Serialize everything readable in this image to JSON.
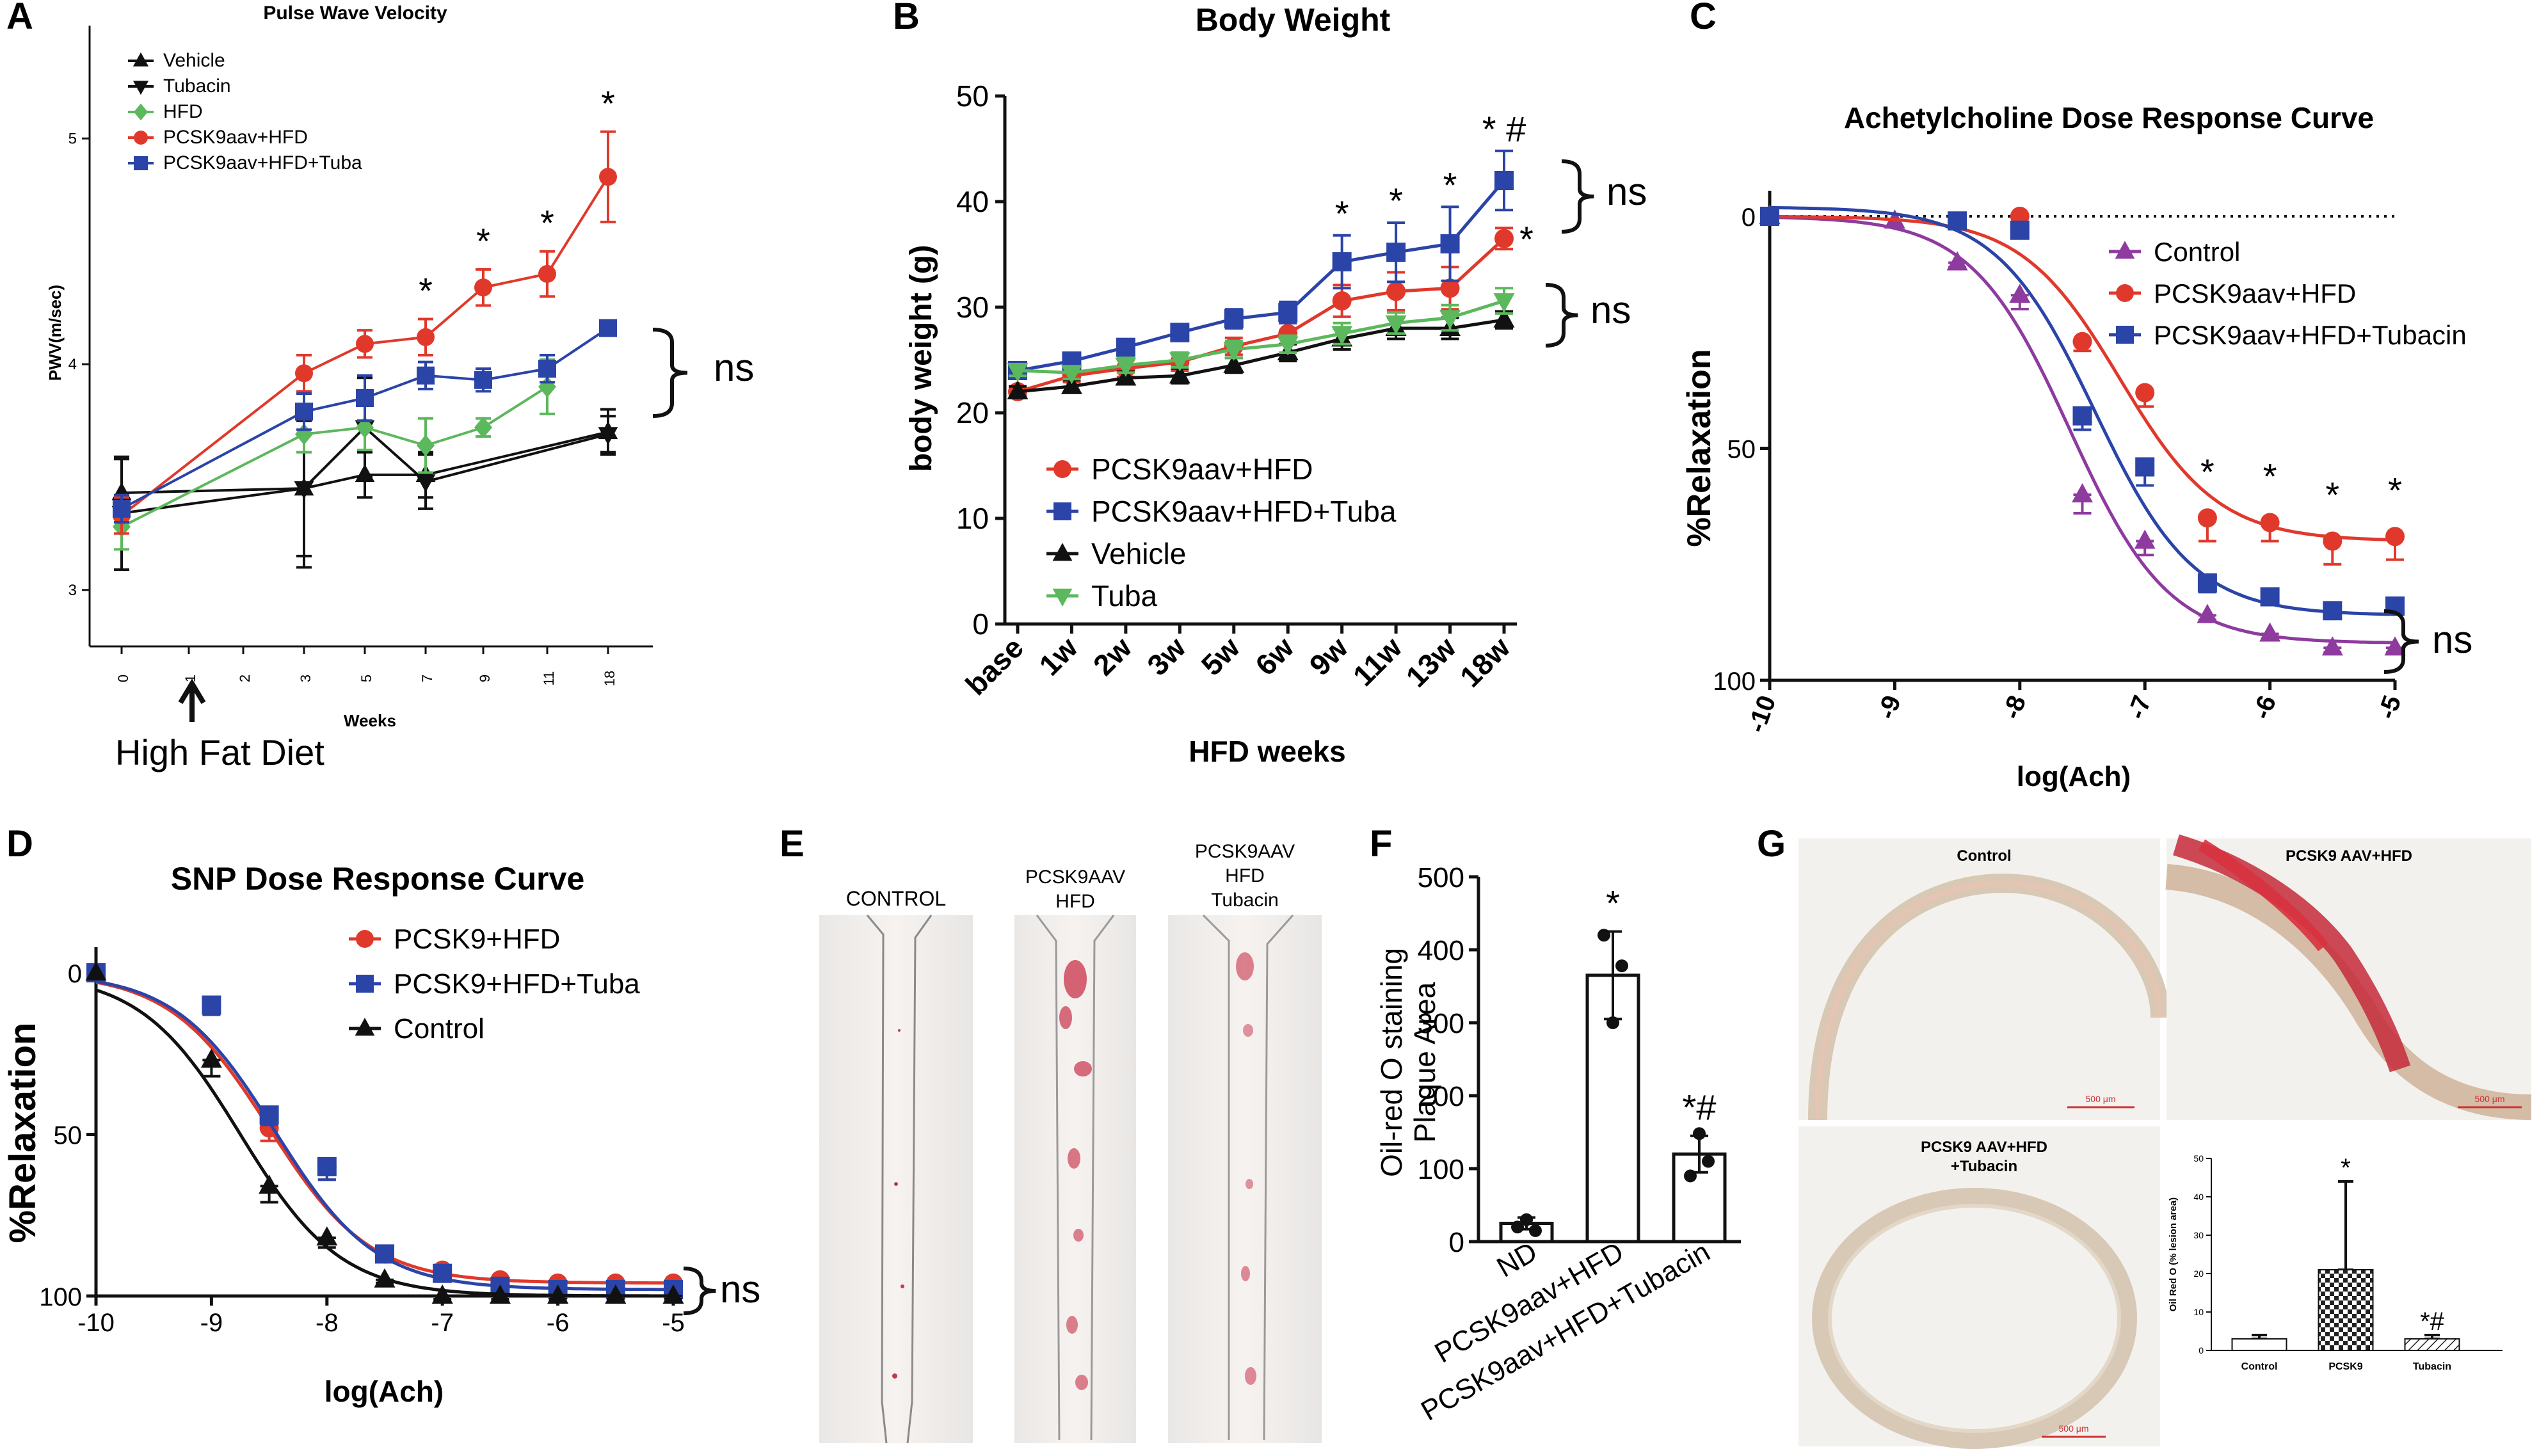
{
  "colors": {
    "red": "#e0392b",
    "blue": "#2b44a8",
    "black": "#111111",
    "green": "#5cb85c",
    "purple": "#8e3a9e"
  },
  "panels": {
    "A": {
      "letter": "A",
      "chart_data": {
        "type": "line",
        "title": "Pulse Wave Velocity",
        "ylabel": "PWV(m/sec)",
        "xlabel": "Weeks",
        "x_ticks": [
          "0",
          "1",
          "2",
          "3",
          "5",
          "7",
          "9",
          "11",
          "18"
        ],
        "ylim": [
          2.75,
          5.5
        ],
        "y_ticks": [
          "3",
          "4",
          "5"
        ],
        "series": [
          {
            "name": "Vehicle",
            "color": "#111111",
            "marker": "triangle",
            "x": [
              "0",
              "3",
              "5",
              "7",
              "18"
            ],
            "values": [
              3.43,
              3.45,
              3.51,
              3.51,
              3.7
            ],
            "err": [
              0.15,
              0.35,
              0.1,
              0.1,
              0.1
            ]
          },
          {
            "name": "Tubacin",
            "color": "#111111",
            "marker": "triangle-down",
            "x": [
              "0",
              "3",
              "5",
              "7",
              "18"
            ],
            "values": [
              3.34,
              3.45,
              3.72,
              3.48,
              3.69
            ],
            "err": [
              0.25,
              0.3,
              0.22,
              0.12,
              0.08
            ]
          },
          {
            "name": "HFD",
            "color": "#5cb85c",
            "marker": "diamond",
            "x": [
              "0",
              "3",
              "5",
              "7",
              "9",
              "11"
            ],
            "values": [
              3.28,
              3.69,
              3.72,
              3.64,
              3.72,
              3.9
            ],
            "err": [
              0.1,
              0.08,
              0.1,
              0.12,
              0.04,
              0.12
            ]
          },
          {
            "name": "PCSK9aav+HFD",
            "color": "#e0392b",
            "marker": "circle",
            "x": [
              "0",
              "3",
              "5",
              "7",
              "9",
              "11",
              "18"
            ],
            "values": [
              3.33,
              3.96,
              4.09,
              4.12,
              4.34,
              4.4,
              4.83
            ],
            "err": [
              0.08,
              0.08,
              0.06,
              0.08,
              0.08,
              0.1,
              0.2
            ]
          },
          {
            "name": "PCSK9aav+HFD+Tuba",
            "color": "#2b44a8",
            "marker": "square",
            "x": [
              "0",
              "3",
              "5",
              "7",
              "9",
              "11",
              "18"
            ],
            "values": [
              3.36,
              3.79,
              3.85,
              3.95,
              3.93,
              3.98,
              4.16
            ],
            "err": [
              0.06,
              0.08,
              0.1,
              0.06,
              0.05,
              0.06,
              0.02
            ]
          }
        ],
        "stars": [
          {
            "x": "7",
            "label": "*"
          },
          {
            "x": "9",
            "label": "*"
          },
          {
            "x": "11",
            "label": "*"
          },
          {
            "x": "18",
            "label": "*"
          }
        ],
        "bracket_label": "ns",
        "annotation": "High Fat Diet",
        "legend_position": "top-left"
      }
    },
    "B": {
      "letter": "B",
      "chart_data": {
        "type": "line",
        "title": "Body Weight",
        "ylabel": "body weight (g)",
        "xlabel": "HFD weeks",
        "categories": [
          "base",
          "1w",
          "2w",
          "3w",
          "5w",
          "6w",
          "9w",
          "11w",
          "13w",
          "18w"
        ],
        "ylim": [
          0,
          50
        ],
        "y_ticks": [
          "0",
          "10",
          "20",
          "30",
          "40",
          "50"
        ],
        "series": [
          {
            "name": "PCSK9aav+HFD",
            "color": "#e0392b",
            "marker": "circle",
            "values": [
              22.0,
              23.5,
              24.2,
              24.8,
              26.3,
              27.5,
              30.6,
              31.5,
              31.8,
              36.5
            ],
            "err": [
              0.5,
              0.6,
              0.8,
              0.8,
              0.8,
              1.0,
              1.5,
              1.8,
              2.0,
              1.0
            ]
          },
          {
            "name": "PCSK9aav+HFD+Tuba",
            "color": "#2b44a8",
            "marker": "square",
            "values": [
              24.0,
              24.9,
              26.2,
              27.6,
              28.9,
              29.5,
              34.3,
              35.2,
              36.0,
              42.0
            ],
            "err": [
              0.5,
              0.6,
              0.7,
              0.8,
              0.9,
              1.0,
              2.5,
              2.8,
              3.5,
              2.8
            ]
          },
          {
            "name": "Vehicle",
            "color": "#111111",
            "marker": "triangle",
            "values": [
              22.0,
              22.5,
              23.3,
              23.5,
              24.5,
              25.7,
              27.0,
              28.0,
              28.0,
              28.8
            ],
            "err": [
              0.5,
              0.6,
              0.6,
              0.7,
              0.7,
              0.8,
              1.0,
              1.0,
              1.0,
              0.8
            ]
          },
          {
            "name": "Tuba",
            "color": "#5cb85c",
            "marker": "triangle-down",
            "values": [
              24.0,
              23.8,
              24.5,
              25.0,
              26.0,
              26.5,
              27.5,
              28.5,
              29.0,
              30.6
            ],
            "err": [
              0.5,
              0.6,
              0.7,
              0.7,
              0.8,
              0.8,
              1.0,
              1.0,
              1.2,
              1.2
            ]
          }
        ],
        "stars": [
          {
            "x": "9w",
            "label": "*"
          },
          {
            "x": "11w",
            "label": "*"
          },
          {
            "x": "13w",
            "label": "*"
          },
          {
            "x": "18w",
            "label": "* #"
          }
        ],
        "star_red": "*",
        "bracket_label_upper": "ns",
        "bracket_label_lower": "ns",
        "legend_position": "bottom-left"
      }
    },
    "C": {
      "letter": "C",
      "chart_data": {
        "type": "scatter",
        "title": "Achetylcholine Dose Response Curve",
        "ylabel": "%Relaxation",
        "xlabel": "log(Ach)",
        "x_ticks": [
          "-10",
          "-9",
          "-8",
          "-7",
          "-6",
          "-5"
        ],
        "xlim": [
          -10,
          -5
        ],
        "ylim": [
          0,
          100
        ],
        "y_ticks": [
          "0",
          "50",
          "100"
        ],
        "series": [
          {
            "name": "Control",
            "color": "#8e3a9e",
            "marker": "triangle",
            "x": [
              -10,
              -9,
              -8.5,
              -8,
              -7.5,
              -7,
              -6.5,
              -6,
              -5.5,
              -5
            ],
            "values": [
              0,
              1,
              10,
              17,
              60,
              70,
              86,
              90,
              93,
              93
            ],
            "err": [
              0,
              0,
              1,
              3,
              4,
              3,
              1,
              1,
              1,
              1
            ],
            "curve": {
              "top": 0,
              "bottom": 92,
              "ec50": -7.6,
              "hill": 1.1
            }
          },
          {
            "name": "PCSK9aav+HFD",
            "color": "#e0392b",
            "marker": "circle",
            "x": [
              -10,
              -8,
              -7.5,
              -7,
              -6.5,
              -6,
              -5.5,
              -5
            ],
            "values": [
              0,
              0,
              27,
              38,
              65,
              66,
              70,
              69
            ],
            "err": [
              0,
              0,
              2,
              3,
              5,
              4,
              5,
              5
            ],
            "curve": {
              "top": 0,
              "bottom": 70,
              "ec50": -7.2,
              "hill": 1.1
            }
          },
          {
            "name": "PCSK9aav+HFD+Tubacin",
            "color": "#2b44a8",
            "marker": "square",
            "x": [
              -10,
              -8.5,
              -8,
              -7.5,
              -7,
              -6.5,
              -6,
              -5.5,
              -5
            ],
            "values": [
              0,
              1,
              3,
              43,
              54,
              79,
              82,
              85,
              84
            ],
            "err": [
              0,
              0,
              1,
              3,
              4,
              2,
              1,
              1,
              1
            ],
            "curve": {
              "top": -2,
              "bottom": 86,
              "ec50": -7.4,
              "hill": 1.1
            }
          }
        ],
        "stars": [
          {
            "x": -6.5,
            "label": "*"
          },
          {
            "x": -6,
            "label": "*"
          },
          {
            "x": -5.5,
            "label": "*"
          },
          {
            "x": -5,
            "label": "*"
          }
        ],
        "bracket_label": "ns",
        "legend_position": "top-right"
      }
    },
    "D": {
      "letter": "D",
      "chart_data": {
        "type": "scatter",
        "title": "SNP Dose Response Curve",
        "ylabel": "%Relaxation",
        "xlabel": "log(Ach)",
        "x_ticks": [
          "-10",
          "-9",
          "-8",
          "-7",
          "-6",
          "-5"
        ],
        "xlim": [
          -10,
          -5
        ],
        "ylim": [
          0,
          100
        ],
        "y_ticks": [
          "0",
          "50",
          "100"
        ],
        "series": [
          {
            "name": "PCSK9+HFD",
            "color": "#e0392b",
            "marker": "circle",
            "x": [
              -10,
              -9,
              -8.5,
              -8,
              -7.5,
              -7,
              -6.5,
              -6,
              -5.5,
              -5
            ],
            "values": [
              0,
              10,
              48,
              60,
              87,
              92,
              95,
              96,
              96,
              96
            ],
            "err": [
              0,
              2,
              4,
              4,
              2,
              3,
              3,
              3,
              3,
              3
            ],
            "curve": {
              "top": 0,
              "bottom": 96,
              "ec50": -8.5,
              "hill": 1.0
            }
          },
          {
            "name": "PCSK9+HFD+Tuba",
            "color": "#2b44a8",
            "marker": "square",
            "x": [
              -10,
              -9,
              -8.5,
              -8,
              -7.5,
              -7,
              -6.5,
              -6,
              -5.5,
              -5
            ],
            "values": [
              0,
              10,
              44,
              60,
              87,
              93,
              97,
              98,
              98,
              98
            ],
            "err": [
              0,
              3,
              3,
              4,
              2,
              2,
              2,
              2,
              2,
              2
            ],
            "curve": {
              "top": 0,
              "bottom": 98,
              "ec50": -8.45,
              "hill": 1.0
            }
          },
          {
            "name": "Control",
            "color": "#111111",
            "marker": "triangle",
            "x": [
              -10,
              -9,
              -8.5,
              -8,
              -7.5,
              -7,
              -6.5,
              -6,
              -5.5,
              -5
            ],
            "values": [
              0,
              27,
              66,
              82,
              95,
              100,
              100,
              100,
              100,
              100
            ],
            "err": [
              0,
              5,
              5,
              3,
              1,
              1,
              1,
              1,
              1,
              1
            ],
            "curve": {
              "top": 0,
              "bottom": 100,
              "ec50": -8.75,
              "hill": 1.0
            }
          }
        ],
        "bracket_label": "ns",
        "legend_position": "top-right"
      }
    },
    "E": {
      "letter": "E",
      "labels": [
        "CONTROL",
        "PCSK9AAV\nHFD",
        "PCSK9AAV\nHFD\nTubacin"
      ]
    },
    "F": {
      "letter": "F",
      "chart_data": {
        "type": "bar",
        "ylabel": "Oil-red O staining\nPlaque Area",
        "categories": [
          "ND",
          "PCSK9aav+HFD",
          "PCSK9aav+HFD+Tubacin"
        ],
        "values": [
          25,
          365,
          120
        ],
        "err": [
          8,
          60,
          25
        ],
        "points": [
          [
            20,
            30,
            15
          ],
          [
            420,
            300,
            378
          ],
          [
            90,
            148,
            110
          ]
        ],
        "ylim": [
          0,
          500
        ],
        "y_ticks": [
          "0",
          "100",
          "200",
          "300",
          "400",
          "500"
        ],
        "stars": [
          "",
          "*",
          "*#"
        ]
      }
    },
    "G": {
      "letter": "G",
      "image_labels": [
        "Control",
        "PCSK9 AAV+HFD",
        "PCSK9 AAV+HFD\n+Tubacin"
      ],
      "scale_label": "500 μm",
      "chart_data": {
        "type": "bar",
        "ylabel": "Oil Red O (% lesion area)",
        "categories": [
          "Control",
          "PCSK9",
          "Tubacin"
        ],
        "values": [
          3,
          21,
          3
        ],
        "err": [
          1,
          23,
          1
        ],
        "ylim": [
          0,
          50
        ],
        "y_ticks": [
          "0",
          "10",
          "20",
          "30",
          "40",
          "50"
        ],
        "stars": [
          "",
          "*",
          "*#"
        ]
      }
    }
  }
}
